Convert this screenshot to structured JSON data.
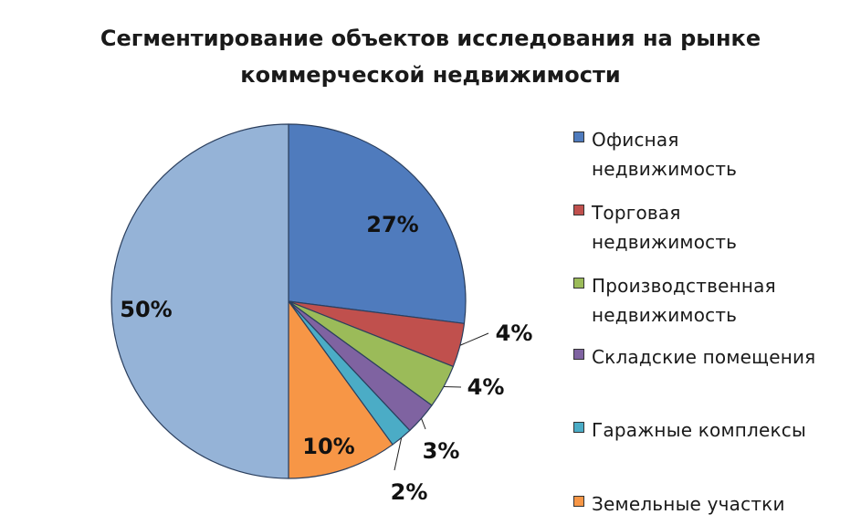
{
  "chart_data": {
    "type": "pie",
    "title_lines": [
      "Сегментирование объектов исследования на рынке",
      "коммерческой недвижимости"
    ],
    "slices": [
      {
        "label": "Офисная недвижимость",
        "legend_lines": [
          "Офисная",
          "недвижимость"
        ],
        "value": 27,
        "value_label": "27%",
        "color": "#4f7bbd"
      },
      {
        "label": "Торговая недвижимость",
        "legend_lines": [
          "Торговая",
          "недвижимость"
        ],
        "value": 4,
        "value_label": "4%",
        "color": "#c0504d"
      },
      {
        "label": "Производственная недвижимость",
        "legend_lines": [
          "Производственная",
          "недвижимость"
        ],
        "value": 4,
        "value_label": "4%",
        "color": "#9bbb59"
      },
      {
        "label": "Складские помещения",
        "legend_lines": [
          "Складские помещения"
        ],
        "value": 3,
        "value_label": "3%",
        "color": "#7f63a1"
      },
      {
        "label": "Гаражные комплексы",
        "legend_lines": [
          "Гаражные комплексы"
        ],
        "value": 2,
        "value_label": "2%",
        "color": "#4bacc6"
      },
      {
        "label": "Земельные участки",
        "legend_lines": [
          "Земельные участки"
        ],
        "value": 10,
        "value_label": "10%",
        "color": "#f79646"
      },
      {
        "label": "",
        "legend_lines": [],
        "value": 50,
        "value_label": "50%",
        "color": "#95b3d7"
      }
    ],
    "legend_position": "right",
    "start_angle": "12 o'clock, clockwise"
  }
}
